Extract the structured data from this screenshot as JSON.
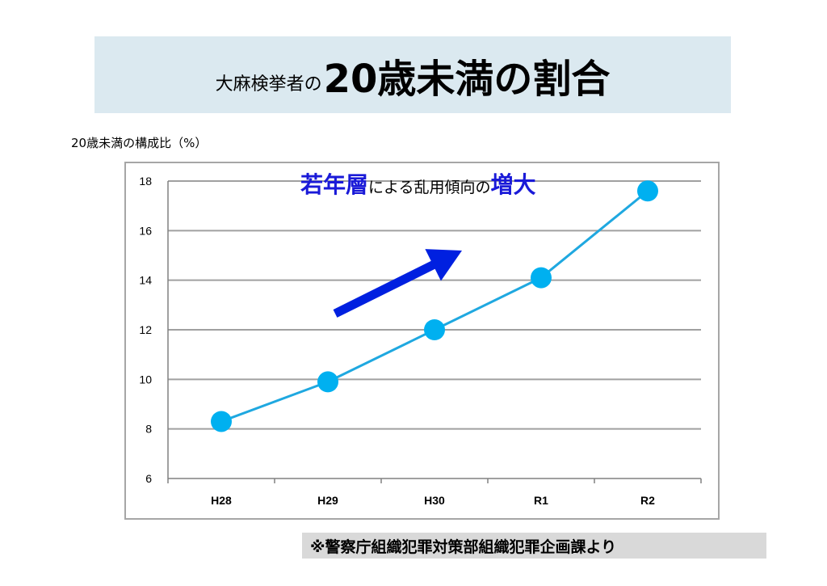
{
  "title": {
    "prefix": "大麻検挙者の",
    "main": "20歳未満の割合"
  },
  "source_note": "※警察庁組織犯罪対策部組織犯罪企画課より",
  "colors": {
    "banner": "#dbe9f0",
    "line": "#1fa8e0",
    "marker": "#00b0f0",
    "arrow": "#0020e0",
    "annotation_highlight": "#1a1ad8",
    "grid": "#a0a0a0"
  },
  "chart_data": {
    "type": "line",
    "ylabel": "20歳未満の構成比（%）",
    "categories": [
      "H28",
      "H29",
      "H30",
      "R1",
      "R2"
    ],
    "series": [
      {
        "values": [
          8.3,
          9.9,
          12.0,
          14.1,
          17.6
        ]
      }
    ],
    "ylim": [
      6,
      18
    ],
    "yticks": [
      6,
      8,
      10,
      12,
      14,
      16,
      18
    ],
    "grid": true,
    "annotation": {
      "parts": [
        {
          "text": "若年層",
          "highlight": true
        },
        {
          "text": "による乱用傾向の",
          "highlight": false
        },
        {
          "text": "増大",
          "highlight": true
        }
      ],
      "arrow": "up-right"
    }
  }
}
